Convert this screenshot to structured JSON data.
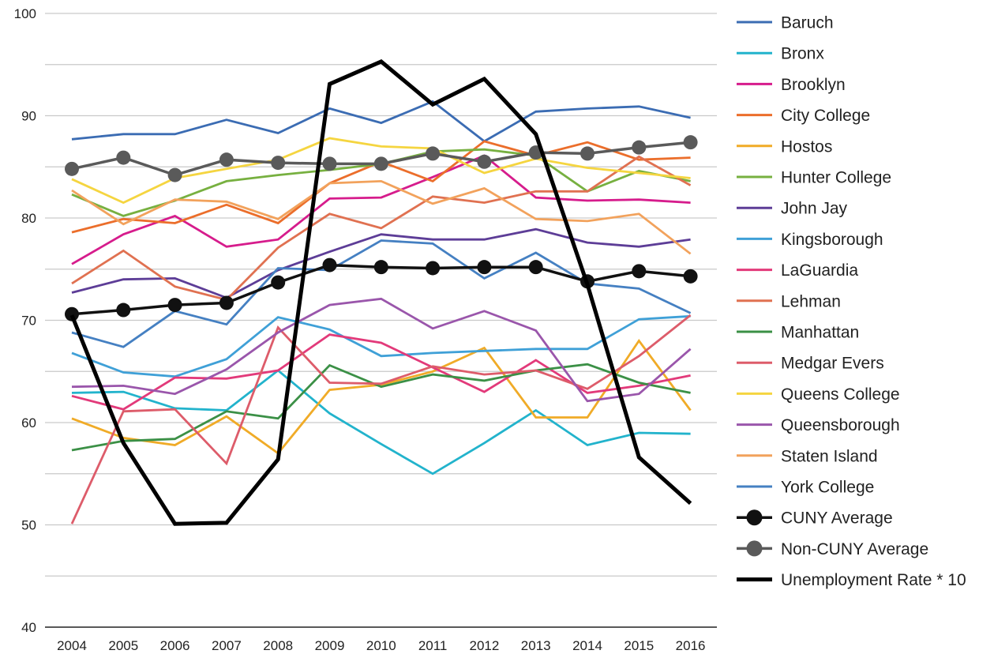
{
  "chart_data": {
    "type": "line",
    "x": [
      "2004",
      "2005",
      "2006",
      "2007",
      "2008",
      "2009",
      "2010",
      "2011",
      "2012",
      "2013",
      "2014",
      "2015",
      "2016"
    ],
    "ylim": [
      40,
      100
    ],
    "yticks": [
      40,
      50,
      60,
      70,
      80,
      90,
      100
    ],
    "grid": true,
    "legend_position": "right",
    "series": [
      {
        "name": "Baruch",
        "color": "#3b6cb3",
        "values": [
          87.7,
          88.2,
          88.2,
          89.6,
          88.3,
          90.7,
          89.3,
          91.4,
          87.5,
          90.4,
          90.7,
          90.9,
          89.8
        ]
      },
      {
        "name": "Bronx",
        "color": "#22b3cc",
        "values": [
          62.9,
          63.0,
          61.4,
          61.2,
          65.1,
          60.9,
          57.9,
          55.0,
          58.0,
          61.2,
          57.8,
          59.0,
          58.9
        ]
      },
      {
        "name": "Brooklyn",
        "color": "#d61c8c",
        "values": [
          75.5,
          78.4,
          80.2,
          77.2,
          77.9,
          81.9,
          82.0,
          84.0,
          86.1,
          82.0,
          81.7,
          81.8,
          81.5
        ]
      },
      {
        "name": "City College",
        "color": "#eb6e2b",
        "values": [
          78.6,
          79.9,
          79.5,
          81.3,
          79.5,
          83.4,
          85.5,
          83.6,
          87.5,
          86.1,
          87.4,
          85.7,
          85.9
        ]
      },
      {
        "name": "Hostos",
        "color": "#f0ab27",
        "values": [
          60.4,
          58.5,
          57.8,
          60.6,
          57.0,
          63.2,
          63.7,
          65.0,
          67.3,
          60.5,
          60.5,
          68.0,
          61.2
        ]
      },
      {
        "name": "Hunter College",
        "color": "#77b040",
        "values": [
          82.3,
          80.2,
          81.7,
          83.6,
          84.2,
          84.7,
          85.3,
          86.5,
          86.7,
          86.1,
          82.6,
          84.6,
          83.6
        ]
      },
      {
        "name": "John Jay",
        "color": "#5d3d97",
        "values": [
          72.7,
          74.0,
          74.1,
          72.2,
          74.9,
          76.7,
          78.4,
          77.9,
          77.9,
          78.9,
          77.6,
          77.2,
          77.9
        ]
      },
      {
        "name": "Kingsborough",
        "color": "#3fa0d7",
        "values": [
          66.8,
          64.9,
          64.5,
          66.2,
          70.3,
          69.1,
          66.5,
          66.8,
          67.0,
          67.2,
          67.2,
          70.1,
          70.4
        ]
      },
      {
        "name": "LaGuardia",
        "color": "#e23a7a",
        "values": [
          62.6,
          61.3,
          64.4,
          64.3,
          65.1,
          68.6,
          67.8,
          65.4,
          63.0,
          66.1,
          62.9,
          63.6,
          64.6
        ]
      },
      {
        "name": "Lehman",
        "color": "#e07151",
        "values": [
          73.6,
          76.8,
          73.3,
          72.0,
          77.1,
          80.4,
          79.0,
          82.1,
          81.5,
          82.6,
          82.6,
          86.0,
          83.2
        ]
      },
      {
        "name": "Manhattan",
        "color": "#3b9046",
        "values": [
          57.3,
          58.2,
          58.4,
          61.1,
          60.4,
          65.6,
          63.5,
          64.7,
          64.1,
          65.1,
          65.7,
          63.9,
          62.9
        ]
      },
      {
        "name": "Medgar Evers",
        "color": "#dd5c6a",
        "values": [
          50.1,
          61.1,
          61.3,
          56.0,
          69.3,
          63.9,
          63.8,
          65.5,
          64.7,
          65.1,
          63.3,
          66.5,
          70.5
        ]
      },
      {
        "name": "Queens College",
        "color": "#f5d540",
        "values": [
          83.8,
          81.5,
          83.9,
          84.8,
          85.7,
          87.8,
          87.0,
          86.8,
          84.4,
          85.8,
          84.9,
          84.4,
          83.9
        ]
      },
      {
        "name": "Queensborough",
        "color": "#9a56ab",
        "values": [
          63.5,
          63.6,
          62.8,
          65.2,
          68.8,
          71.5,
          72.1,
          69.2,
          70.9,
          69.0,
          62.1,
          62.8,
          67.2
        ]
      },
      {
        "name": "Staten Island",
        "color": "#f2a25c",
        "values": [
          82.7,
          79.4,
          81.8,
          81.6,
          79.9,
          83.4,
          83.6,
          81.4,
          82.9,
          79.9,
          79.7,
          80.4,
          76.5
        ]
      },
      {
        "name": "York College",
        "color": "#4580c2",
        "values": [
          68.8,
          67.4,
          70.9,
          69.6,
          75.1,
          74.9,
          77.8,
          77.5,
          74.1,
          76.6,
          73.6,
          73.1,
          70.7
        ]
      },
      {
        "name": "CUNY Average",
        "color": "#111111",
        "marker": true,
        "values": [
          70.6,
          71.0,
          71.5,
          71.7,
          73.7,
          75.4,
          75.2,
          75.1,
          75.2,
          75.2,
          73.8,
          74.8,
          74.3
        ]
      },
      {
        "name": "Non-CUNY Average",
        "color": "#5a5a5a",
        "marker": true,
        "values": [
          84.8,
          85.9,
          84.2,
          85.7,
          85.4,
          85.3,
          85.3,
          86.3,
          85.5,
          86.4,
          86.3,
          86.9,
          87.4
        ]
      },
      {
        "name": "Unemployment Rate * 10",
        "color": "#000000",
        "thick": true,
        "values": [
          70.5,
          58.0,
          50.1,
          50.2,
          56.4,
          93.1,
          95.3,
          91.1,
          93.6,
          88.2,
          73.5,
          56.6,
          52.1
        ]
      }
    ]
  }
}
